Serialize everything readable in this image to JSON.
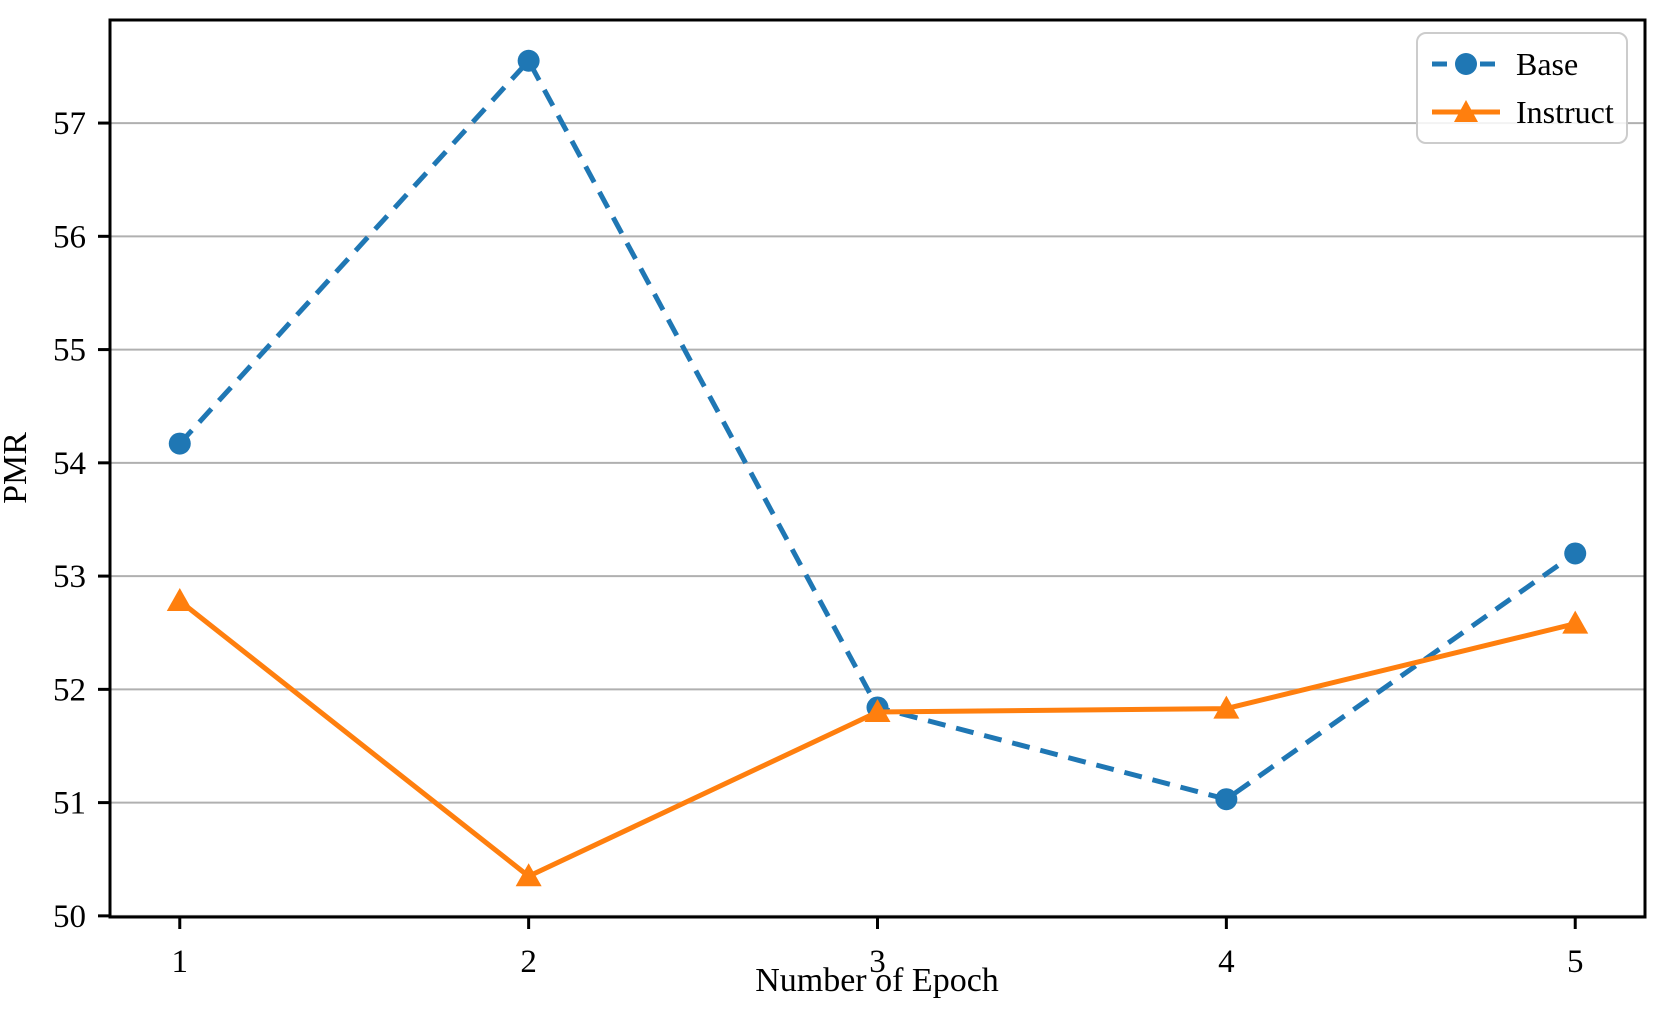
{
  "chart_data": {
    "type": "line",
    "x": [
      1,
      2,
      3,
      4,
      5
    ],
    "xticks": [
      1,
      2,
      3,
      4,
      5
    ],
    "yticks": [
      50,
      51,
      52,
      53,
      54,
      55,
      56,
      57
    ],
    "xlim": [
      0.8,
      5.2
    ],
    "ylim": [
      49.99,
      57.91
    ],
    "xlabel": "Number of Epoch",
    "ylabel": "PMR",
    "grid": "horizontal",
    "legend_position": "top-right",
    "series": [
      {
        "name": "Base",
        "values": [
          54.17,
          57.55,
          51.84,
          51.03,
          53.2
        ],
        "color": "#1f77b4",
        "linestyle": "dashed",
        "marker": "circle"
      },
      {
        "name": "Instruct",
        "values": [
          52.78,
          50.35,
          51.8,
          51.83,
          52.58
        ],
        "color": "#ff7f0e",
        "linestyle": "solid",
        "marker": "triangle-up"
      }
    ],
    "colors": {
      "grid": "#b0b0b0",
      "spine": "#000000",
      "background": "#ffffff",
      "legend_border": "#cccccc"
    }
  }
}
